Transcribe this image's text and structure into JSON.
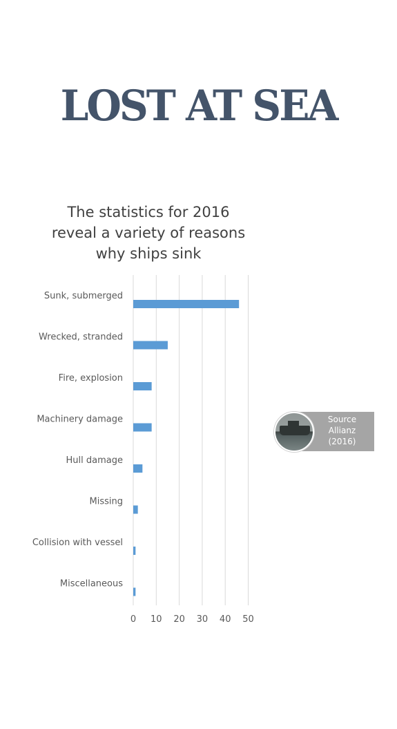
{
  "headline": "LOST AT SEA",
  "source": {
    "label": "Source",
    "name": "Allianz",
    "year": "(2016)",
    "photo": "ship-photo"
  },
  "chart_data": {
    "type": "bar",
    "orientation": "horizontal",
    "title_lines": [
      "The statistics for 2016",
      "reveal a variety of reasons",
      "why ships sink"
    ],
    "categories": [
      "Sunk, submerged",
      "Wrecked, stranded",
      "Fire, explosion",
      "Machinery damage",
      "Hull damage",
      "Missing",
      "Collision with vessel",
      "Miscellaneous"
    ],
    "values": [
      46,
      15,
      8,
      8,
      4,
      2,
      1,
      1
    ],
    "xlim": [
      0,
      50
    ],
    "xticks": [
      "0",
      "10",
      "20",
      "30",
      "40",
      "50"
    ],
    "grid": true,
    "bar_color": "#5b9bd5"
  }
}
